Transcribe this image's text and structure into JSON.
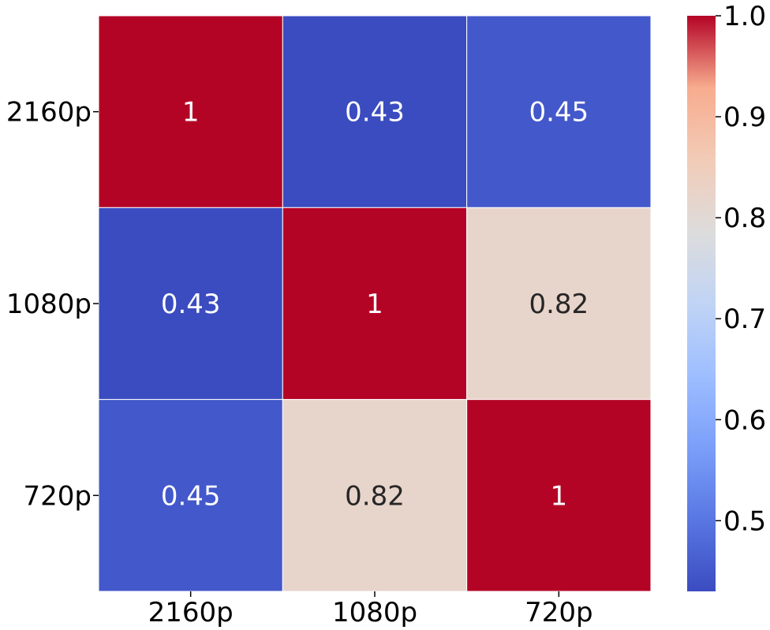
{
  "chart_data": {
    "type": "heatmap",
    "title": "",
    "xlabel": "",
    "ylabel": "",
    "x_categories": [
      "2160p",
      "1080p",
      "720p"
    ],
    "y_categories": [
      "2160p",
      "1080p",
      "720p"
    ],
    "values": [
      [
        1,
        0.43,
        0.45
      ],
      [
        0.43,
        1,
        0.82
      ],
      [
        0.45,
        0.82,
        1
      ]
    ],
    "annotations": [
      [
        "1",
        "0.43",
        "0.45"
      ],
      [
        "0.43",
        "1",
        "0.82"
      ],
      [
        "0.45",
        "0.82",
        "1"
      ]
    ],
    "colormap": "coolwarm",
    "colorbar": {
      "min": 0.43,
      "max": 1.0,
      "ticks": [
        0.5,
        0.6,
        0.7,
        0.8,
        0.9,
        1.0
      ],
      "tick_labels": [
        "0.5",
        "0.6",
        "0.7",
        "0.8",
        "0.9",
        "1.0"
      ]
    }
  }
}
